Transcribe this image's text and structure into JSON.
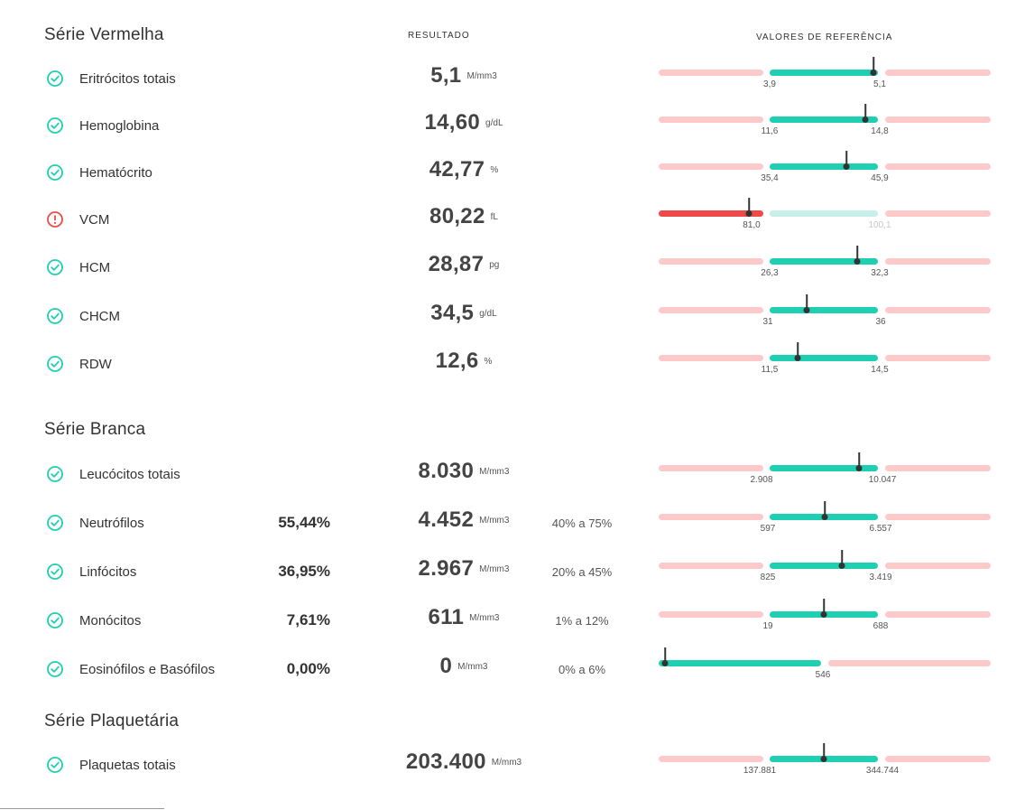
{
  "headers": {
    "result": "RESULTADO",
    "reference": "VALORES DE REFERÊNCIA"
  },
  "colors": {
    "ok": "#1ecfb1",
    "alert": "#ef4a4a",
    "range_out": "#fdc9c9"
  },
  "sections": {
    "red": {
      "title": "Série Vermelha"
    },
    "white": {
      "title": "Série Branca"
    },
    "platelet": {
      "title": "Série Plaquetária"
    }
  },
  "rows": [
    {
      "name": "Eritrócitos totais",
      "status": "ok",
      "value": "5,1",
      "unit": "M/mm3",
      "ref_low": "3,9",
      "ref_high": "5,1"
    },
    {
      "name": "Hemoglobina",
      "status": "ok",
      "value": "14,60",
      "unit": "g/dL",
      "ref_low": "11,6",
      "ref_high": "14,8"
    },
    {
      "name": "Hematócrito",
      "status": "ok",
      "value": "42,77",
      "unit": "%",
      "ref_low": "35,4",
      "ref_high": "45,9"
    },
    {
      "name": "VCM",
      "status": "alert",
      "value": "80,22",
      "unit": "fL",
      "ref_low": "81,0",
      "ref_high": "100,1"
    },
    {
      "name": "HCM",
      "status": "ok",
      "value": "28,87",
      "unit": "pg",
      "ref_low": "26,3",
      "ref_high": "32,3"
    },
    {
      "name": "CHCM",
      "status": "ok",
      "value": "34,5",
      "unit": "g/dL",
      "ref_low": "31",
      "ref_high": "36"
    },
    {
      "name": "RDW",
      "status": "ok",
      "value": "12,6",
      "unit": "%",
      "ref_low": "11,5",
      "ref_high": "14,5"
    },
    {
      "name": "Leucócitos totais",
      "status": "ok",
      "value": "8.030",
      "unit": "M/mm3",
      "ref_low": "2.908",
      "ref_high": "10.047"
    },
    {
      "name": "Neutrófilos",
      "status": "ok",
      "percent": "55,44%",
      "value": "4.452",
      "unit": "M/mm3",
      "ref_range": "40% a 75%",
      "ref_low": "597",
      "ref_high": "6.557"
    },
    {
      "name": "Linfócitos",
      "status": "ok",
      "percent": "36,95%",
      "value": "2.967",
      "unit": "M/mm3",
      "ref_range": "20% a 45%",
      "ref_low": "825",
      "ref_high": "3.419"
    },
    {
      "name": "Monócitos",
      "status": "ok",
      "percent": "7,61%",
      "value": "611",
      "unit": "M/mm3",
      "ref_range": "1% a 12%",
      "ref_low": "19",
      "ref_high": "688"
    },
    {
      "name": "Eosinófilos e Basófilos",
      "status": "ok",
      "percent": "0,00%",
      "value": "0",
      "unit": "M/mm3",
      "ref_range": "0% a 6%",
      "ref_high": "546"
    },
    {
      "name": "Plaquetas totais",
      "status": "ok",
      "value": "203.400",
      "unit": "M/mm3",
      "ref_low": "137.881",
      "ref_high": "344.744"
    }
  ]
}
